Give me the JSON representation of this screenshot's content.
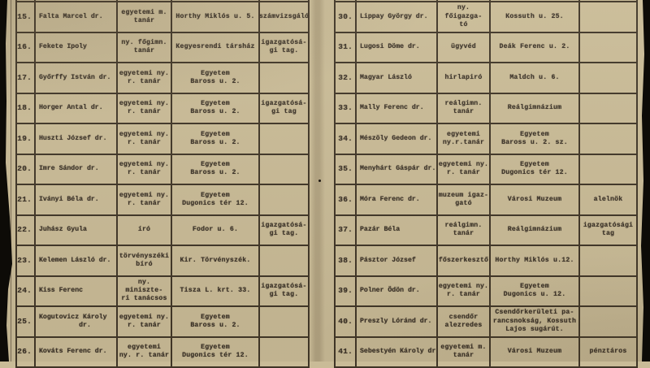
{
  "colors": {
    "paper": "#c9bb97",
    "ink": "#3a3127",
    "table_line": "#2b2218",
    "scan_edge": "#0d0b07"
  },
  "left_table": {
    "rows": [
      {
        "num": "15.",
        "name": "Falta Marcel dr.",
        "title": "egyetemi m.\ntanár",
        "address": "Horthy Miklós u. 5.",
        "note": "számvizsgáló"
      },
      {
        "num": "16.",
        "name": "Fekete Ipoly",
        "title": "ny. főgimn.\ntanár",
        "address": "Kegyesrendi társház",
        "note": "igazgatósá-\ngi tag."
      },
      {
        "num": "17.",
        "name": "Győrffy István dr.",
        "title": "egyetemi ny.\nr. tanár",
        "address": "Egyetem\nBaross u. 2.",
        "note": ""
      },
      {
        "num": "18.",
        "name": "Horger Antal dr.",
        "title": "egyetemi ny.\nr. tanár",
        "address": "Egyetem\nBaross u. 2.",
        "note": "igazgatósá-\ngi tag"
      },
      {
        "num": "19.",
        "name": "Huszti József dr.",
        "title": "egyetemi ny.\nr. tanár",
        "address": "Egyetem\nBaross u. 2.",
        "note": ""
      },
      {
        "num": "20.",
        "name": "Imre Sándor dr.",
        "title": "egyetemi ny.\nr. tanár",
        "address": "Egyetem\nBaross u. 2.",
        "note": ""
      },
      {
        "num": "21.",
        "name": "Iványi Béla dr.",
        "title": "egyetemi ny.\nr. tanár",
        "address": "Egyetem\nDugonics tér 12.",
        "note": ""
      },
      {
        "num": "22.",
        "name": "Juhász Gyula",
        "title": "író",
        "address": "Fodor u. 6.",
        "note": "igazgatósá-\ngi tag."
      },
      {
        "num": "23.",
        "name": "Kelemen László dr.",
        "title": "törvényszéki\nbíró",
        "address": "Kir. Törvényszék.",
        "note": ""
      },
      {
        "num": "24.",
        "name": "Kiss Ferenc",
        "title": "ny. miniszte-\nri tanácsos",
        "address": "Tisza L. krt. 33.",
        "note": "igazgatósá-\ngi tag."
      },
      {
        "num": "25.",
        "name": "Kogutovicz Károly\n          dr.",
        "title": "egyetemi ny.\nr. tanár",
        "address": "Egyetem\nBaross u. 2.",
        "note": ""
      },
      {
        "num": "26.",
        "name": "Kováts Ferenc dr.",
        "title": "egyetemi\nny. r. tanár",
        "address": "Egyetem\nDugonics tér 12.",
        "note": ""
      }
    ]
  },
  "right_table": {
    "rows": [
      {
        "num": "30.",
        "name": "Lippay György dr.",
        "title": "ny. főigazga-\ntó",
        "address": "Kossuth u. 25.",
        "note": ""
      },
      {
        "num": "31.",
        "name": "Lugosi Döme dr.",
        "title": "ügyvéd",
        "address": "Deák Ferenc u. 2.",
        "note": ""
      },
      {
        "num": "32.",
        "name": "Magyar László",
        "title": "hirlapiró",
        "address": "Maldch u. 6.",
        "note": ""
      },
      {
        "num": "33.",
        "name": "Mally Ferenc dr.",
        "title": "reálgimn.\ntanár",
        "address": "Reálgimnázium",
        "note": ""
      },
      {
        "num": "34.",
        "name": "Mészöly Gedeon dr.",
        "title": "egyetemi\nny.r.tanár",
        "address": "Egyetem\nBaross u. 2. sz.",
        "note": ""
      },
      {
        "num": "35.",
        "name": "Menyhárt Gáspár dr.",
        "title": "egyetemi ny.\nr. tanár",
        "address": "Egyetem\nDugonics tér 12.",
        "note": ""
      },
      {
        "num": "36.",
        "name": "Móra Ferenc dr.",
        "title": "muzeum igaz-\ngató",
        "address": "Városi Muzeum",
        "note": "alelnök"
      },
      {
        "num": "37.",
        "name": "Pazár Béla",
        "title": "reálgimn.\ntanár",
        "address": "Reálgimnázium",
        "note": "igazgatósági\ntag"
      },
      {
        "num": "38.",
        "name": "Pásztor József",
        "title": "főszerkesztő",
        "address": "Horthy Miklós u.12.",
        "note": ""
      },
      {
        "num": "39.",
        "name": "Polner Ödön dr.",
        "title": "egyetemi ny.\nr. tanár",
        "address": "Egyetem\nDugonics u. 12.",
        "note": ""
      },
      {
        "num": "40.",
        "name": "Preszly Lóránd dr.",
        "title": "csendőr\nalezredes",
        "address": "Csendőrkerületi pa-\nrancsnokság, Kossuth\nLajos sugárút.",
        "note": ""
      },
      {
        "num": "41.",
        "name": "Sebestyén Károly dr,",
        "title": "egyetemi m.\ntanár",
        "address": "Városi Muzeum",
        "note": "pénztáros"
      }
    ]
  }
}
